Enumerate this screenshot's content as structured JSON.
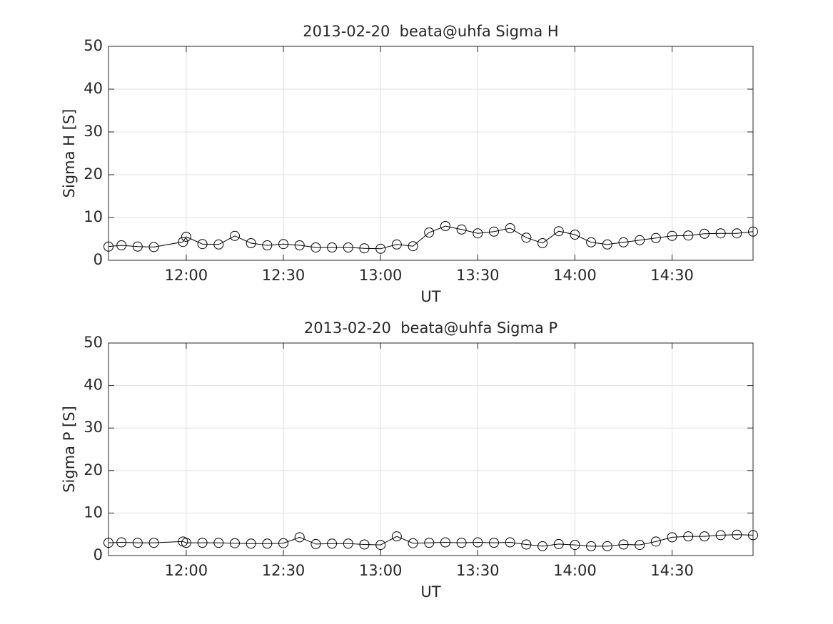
{
  "chart_data": [
    {
      "type": "line",
      "title": "2013-02-20  beata@uhfa Sigma H",
      "ylabel": "Sigma H [S]",
      "xlabel": "UT",
      "x": [
        "11:36",
        "11:40",
        "11:45",
        "11:50",
        "11:59",
        "12:00",
        "12:05",
        "12:10",
        "12:15",
        "12:20",
        "12:25",
        "12:30",
        "12:35",
        "12:40",
        "12:45",
        "12:50",
        "12:55",
        "13:00",
        "13:05",
        "13:10",
        "13:15",
        "13:20",
        "13:25",
        "13:30",
        "13:35",
        "13:40",
        "13:45",
        "13:50",
        "13:55",
        "14:00",
        "14:05",
        "14:10",
        "14:15",
        "14:20",
        "14:25",
        "14:30",
        "14:35",
        "14:40",
        "14:45",
        "14:50",
        "14:55"
      ],
      "values": [
        3.2,
        3.5,
        3.2,
        3.1,
        4.3,
        5.5,
        3.8,
        3.7,
        5.7,
        4.0,
        3.5,
        3.8,
        3.5,
        3.0,
        3.0,
        3.0,
        2.8,
        2.7,
        3.7,
        3.3,
        6.5,
        8.0,
        7.2,
        6.3,
        6.7,
        7.5,
        5.3,
        4.0,
        6.8,
        6.0,
        4.2,
        3.7,
        4.2,
        4.7,
        5.2,
        5.7,
        5.8,
        6.2,
        6.3,
        6.3,
        6.7
      ],
      "color": "#000000",
      "xlim": [
        "11:36",
        "14:55"
      ],
      "xticks": [
        "12:00",
        "12:30",
        "13:00",
        "13:30",
        "14:00",
        "14:30"
      ],
      "ylim": [
        0,
        50
      ],
      "yticks": [
        0,
        10,
        20,
        30,
        40,
        50
      ],
      "grid": true
    },
    {
      "type": "line",
      "title": "2013-02-20  beata@uhfa Sigma P",
      "ylabel": "Sigma P [S]",
      "xlabel": "UT",
      "x": [
        "11:36",
        "11:40",
        "11:45",
        "11:50",
        "11:59",
        "12:00",
        "12:05",
        "12:10",
        "12:15",
        "12:20",
        "12:25",
        "12:30",
        "12:35",
        "12:40",
        "12:45",
        "12:50",
        "12:55",
        "13:00",
        "13:05",
        "13:10",
        "13:15",
        "13:20",
        "13:25",
        "13:30",
        "13:35",
        "13:40",
        "13:45",
        "13:50",
        "13:55",
        "14:00",
        "14:05",
        "14:10",
        "14:15",
        "14:20",
        "14:25",
        "14:30",
        "14:35",
        "14:40",
        "14:45",
        "14:50",
        "14:55"
      ],
      "values": [
        3.0,
        3.1,
        3.0,
        3.0,
        3.3,
        3.0,
        3.0,
        3.0,
        2.9,
        2.8,
        2.8,
        2.9,
        4.3,
        2.7,
        2.8,
        2.8,
        2.6,
        2.5,
        4.5,
        2.9,
        3.0,
        3.1,
        3.0,
        3.1,
        3.0,
        3.1,
        2.6,
        2.2,
        2.7,
        2.5,
        2.2,
        2.2,
        2.6,
        2.5,
        3.3,
        4.3,
        4.5,
        4.5,
        4.8,
        4.9,
        4.8
      ],
      "color": "#000000",
      "xlim": [
        "11:36",
        "14:55"
      ],
      "xticks": [
        "12:00",
        "12:30",
        "13:00",
        "13:30",
        "14:00",
        "14:30"
      ],
      "ylim": [
        0,
        50
      ],
      "yticks": [
        0,
        10,
        20,
        30,
        40,
        50
      ],
      "grid": true
    }
  ]
}
